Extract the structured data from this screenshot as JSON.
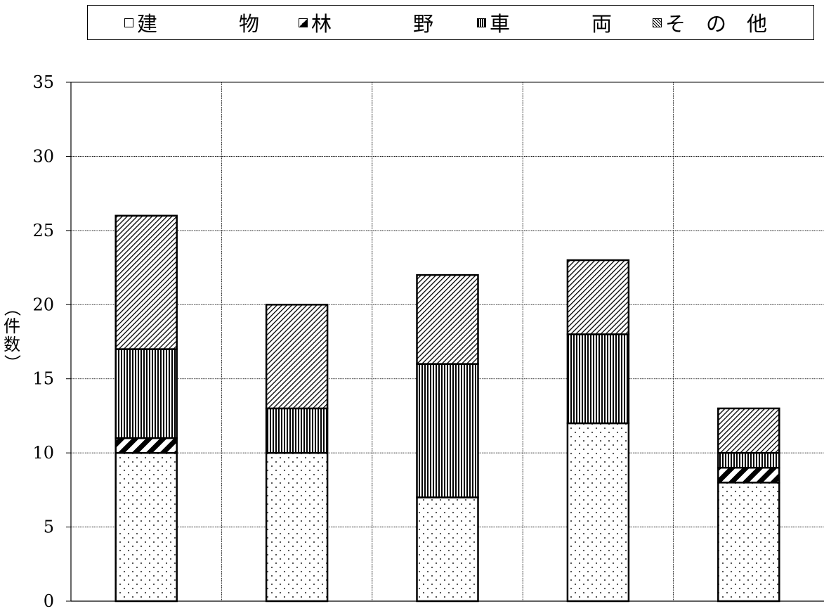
{
  "chart_data": {
    "type": "bar",
    "stacked": true,
    "title": "",
    "xlabel": "",
    "ylabel": "（件数）",
    "ylim": [
      0,
      35
    ],
    "yticks": [
      0,
      5,
      10,
      15,
      20,
      25,
      30,
      35
    ],
    "grid": true,
    "legend_position": "top",
    "categories": [
      "",
      "",
      "",
      "",
      ""
    ],
    "series": [
      {
        "name": "建　　物",
        "pattern": "dots",
        "values": [
          10,
          10,
          7,
          12,
          8
        ]
      },
      {
        "name": "林　　野",
        "pattern": "diagonal-thick",
        "values": [
          1,
          0,
          0,
          0,
          1
        ]
      },
      {
        "name": "車　　両",
        "pattern": "vertical",
        "values": [
          6,
          3,
          9,
          6,
          1
        ]
      },
      {
        "name": "そ の 他",
        "pattern": "diagonal-thin",
        "values": [
          9,
          7,
          6,
          5,
          3
        ]
      }
    ]
  },
  "legend": {
    "items": [
      "建　　　　物",
      "林　　　　野",
      "車　　　　両",
      "そ　の　他"
    ]
  },
  "axis": {
    "ylabel_chars": [
      "（",
      "件",
      "数",
      "）"
    ]
  }
}
